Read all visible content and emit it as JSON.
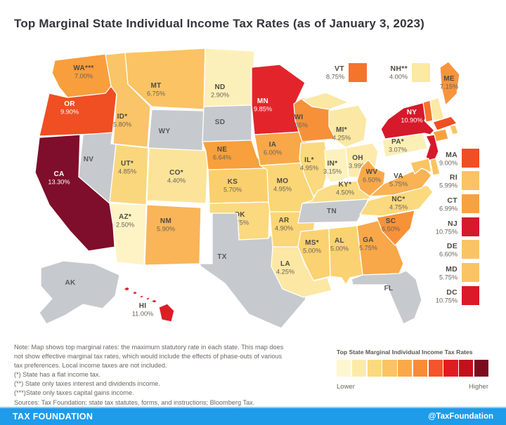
{
  "title": "Top Marginal State Individual Income Tax Rates (as of January 3, 2023)",
  "map": {
    "no_tax_color": "#C6CACE",
    "states": [
      {
        "id": "WA",
        "label": "WA***",
        "rate": "7.00%",
        "color": "#F89E3D",
        "text": "dark"
      },
      {
        "id": "OR",
        "label": "OR",
        "rate": "9.90%",
        "color": "#F04E23",
        "text": "white"
      },
      {
        "id": "CA",
        "label": "CA",
        "rate": "13.30%",
        "color": "#7E0E2B",
        "text": "white"
      },
      {
        "id": "NV",
        "label": "NV",
        "rate": "",
        "color": "#C6CACE",
        "text": "gray"
      },
      {
        "id": "ID",
        "label": "ID*",
        "rate": "5.80%",
        "color": "#FAC468",
        "text": "dark"
      },
      {
        "id": "MT",
        "label": "MT",
        "rate": "6.75%",
        "color": "#FBC364",
        "text": "dark"
      },
      {
        "id": "WY",
        "label": "WY",
        "rate": "",
        "color": "#C6CACE",
        "text": "gray"
      },
      {
        "id": "UT",
        "label": "UT*",
        "rate": "4.85%",
        "color": "#FAD77D",
        "text": "dark"
      },
      {
        "id": "CO",
        "label": "CO*",
        "rate": "4.40%",
        "color": "#FBE499",
        "text": "dark"
      },
      {
        "id": "AZ",
        "label": "AZ*",
        "rate": "2.50%",
        "color": "#FDF3C5",
        "text": "dark"
      },
      {
        "id": "NM",
        "label": "NM",
        "rate": "5.90%",
        "color": "#F9B558",
        "text": "dark"
      },
      {
        "id": "ND",
        "label": "ND",
        "rate": "2.90%",
        "color": "#FCF0BA",
        "text": "dark"
      },
      {
        "id": "SD",
        "label": "SD",
        "rate": "",
        "color": "#C6CACE",
        "text": "gray"
      },
      {
        "id": "NE",
        "label": "NE",
        "rate": "6.64%",
        "color": "#F7A03C",
        "text": "dark"
      },
      {
        "id": "KS",
        "label": "KS",
        "rate": "5.70%",
        "color": "#FAD06E",
        "text": "dark"
      },
      {
        "id": "OK",
        "label": "OK",
        "rate": "4.75%",
        "color": "#FBD97E",
        "text": "dark"
      },
      {
        "id": "TX",
        "label": "TX",
        "rate": "",
        "color": "#C6CACE",
        "text": "gray"
      },
      {
        "id": "MN",
        "label": "MN",
        "rate": "9.85%",
        "color": "#E3252B",
        "text": "white"
      },
      {
        "id": "IA",
        "label": "IA",
        "rate": "6.00%",
        "color": "#F8A848",
        "text": "dark"
      },
      {
        "id": "MO",
        "label": "MO",
        "rate": "4.95%",
        "color": "#FBD676",
        "text": "dark"
      },
      {
        "id": "AR",
        "label": "AR",
        "rate": "4.90%",
        "color": "#FBD676",
        "text": "dark"
      },
      {
        "id": "LA",
        "label": "LA",
        "rate": "4.25%",
        "color": "#FCE8A4",
        "text": "dark"
      },
      {
        "id": "WI",
        "label": "WI",
        "rate": "7.65%",
        "color": "#F6913A",
        "text": "dark"
      },
      {
        "id": "IL",
        "label": "IL*",
        "rate": "4.95%",
        "color": "#FBD97E",
        "text": "dark"
      },
      {
        "id": "MI",
        "label": "MI*",
        "rate": "4.25%",
        "color": "#FAE8A4",
        "text": "dark"
      },
      {
        "id": "IN",
        "label": "IN*",
        "rate": "3.15%",
        "color": "#FDF1BE",
        "text": "dark"
      },
      {
        "id": "OH",
        "label": "OH",
        "rate": "3.99%",
        "color": "#FCEBAC",
        "text": "dark"
      },
      {
        "id": "KY",
        "label": "KY*",
        "rate": "4.50%",
        "color": "#FBDC86",
        "text": "dark"
      },
      {
        "id": "TN",
        "label": "TN",
        "rate": "",
        "color": "#C6CACE",
        "text": "gray"
      },
      {
        "id": "MS",
        "label": "MS*",
        "rate": "5.00%",
        "color": "#FBD272",
        "text": "dark"
      },
      {
        "id": "AL",
        "label": "AL",
        "rate": "5.00%",
        "color": "#FBD272",
        "text": "dark"
      },
      {
        "id": "GA",
        "label": "GA",
        "rate": "5.75%",
        "color": "#F8A848",
        "text": "dark"
      },
      {
        "id": "FL",
        "label": "FL",
        "rate": "",
        "color": "#C6CACE",
        "text": "gray"
      },
      {
        "id": "SC",
        "label": "SC",
        "rate": "6.50%",
        "color": "#F79239",
        "text": "dark"
      },
      {
        "id": "NC",
        "label": "NC*",
        "rate": "4.75%",
        "color": "#FBD97E",
        "text": "dark"
      },
      {
        "id": "VA",
        "label": "VA",
        "rate": "5.75%",
        "color": "#F9B254",
        "text": "dark"
      },
      {
        "id": "WV",
        "label": "WV",
        "rate": "6.50%",
        "color": "#F9A94A",
        "text": "dark"
      },
      {
        "id": "PA",
        "label": "PA*",
        "rate": "3.07%",
        "color": "#FCEFB6",
        "text": "dark"
      },
      {
        "id": "NY",
        "label": "NY",
        "rate": "10.90%",
        "color": "#D6192B",
        "text": "white"
      },
      {
        "id": "ME",
        "label": "ME",
        "rate": "7.15%",
        "color": "#F7953D",
        "text": "dark"
      },
      {
        "id": "AK",
        "label": "AK",
        "rate": "",
        "color": "#C6CACE",
        "text": "gray"
      },
      {
        "id": "HI",
        "label": "HI",
        "rate": "11.00%",
        "color": "#DC1E27",
        "text": "dark"
      }
    ],
    "callouts": [
      {
        "id": "VT",
        "label": "VT",
        "rate": "8.75%",
        "color": "#F4742C"
      },
      {
        "id": "NH",
        "label": "NH**",
        "rate": "4.00%",
        "color": "#FCE9A6"
      }
    ],
    "east_list": [
      {
        "id": "MA",
        "label": "MA",
        "rate": "9.00%",
        "color": "#F04E23"
      },
      {
        "id": "RI",
        "label": "RI",
        "rate": "5.99%",
        "color": "#FAC464"
      },
      {
        "id": "CT",
        "label": "CT",
        "rate": "6.99%",
        "color": "#F8A23F"
      },
      {
        "id": "NJ",
        "label": "NJ",
        "rate": "10.75%",
        "color": "#D6192B"
      },
      {
        "id": "DE",
        "label": "DE",
        "rate": "6.60%",
        "color": "#FAC464"
      },
      {
        "id": "MD",
        "label": "MD",
        "rate": "5.75%",
        "color": "#FAC464"
      },
      {
        "id": "DC",
        "label": "DC",
        "rate": "10.75%",
        "color": "#DA1A26"
      }
    ]
  },
  "chart_data": {
    "type": "heatmap",
    "title": "Top Marginal State Individual Income Tax Rates (as of January 3, 2023)",
    "unit": "percent",
    "series": [
      {
        "state": "AL",
        "rate": 5.0
      },
      {
        "state": "AK",
        "rate": null
      },
      {
        "state": "AZ",
        "rate": 2.5,
        "note": "flat"
      },
      {
        "state": "AR",
        "rate": 4.9
      },
      {
        "state": "CA",
        "rate": 13.3
      },
      {
        "state": "CO",
        "rate": 4.4,
        "note": "flat"
      },
      {
        "state": "CT",
        "rate": 6.99
      },
      {
        "state": "DE",
        "rate": 6.6
      },
      {
        "state": "DC",
        "rate": 10.75
      },
      {
        "state": "FL",
        "rate": null
      },
      {
        "state": "GA",
        "rate": 5.75
      },
      {
        "state": "HI",
        "rate": 11.0
      },
      {
        "state": "ID",
        "rate": 5.8,
        "note": "flat"
      },
      {
        "state": "IL",
        "rate": 4.95,
        "note": "flat"
      },
      {
        "state": "IN",
        "rate": 3.15,
        "note": "flat"
      },
      {
        "state": "IA",
        "rate": 6.0
      },
      {
        "state": "KS",
        "rate": 5.7
      },
      {
        "state": "KY",
        "rate": 4.5,
        "note": "flat"
      },
      {
        "state": "LA",
        "rate": 4.25
      },
      {
        "state": "ME",
        "rate": 7.15
      },
      {
        "state": "MD",
        "rate": 5.75
      },
      {
        "state": "MA",
        "rate": 9.0
      },
      {
        "state": "MI",
        "rate": 4.25,
        "note": "flat"
      },
      {
        "state": "MN",
        "rate": 9.85
      },
      {
        "state": "MS",
        "rate": 5.0,
        "note": "flat"
      },
      {
        "state": "MO",
        "rate": 4.95
      },
      {
        "state": "MT",
        "rate": 6.75
      },
      {
        "state": "NE",
        "rate": 6.64
      },
      {
        "state": "NV",
        "rate": null
      },
      {
        "state": "NH",
        "rate": 4.0,
        "note": "interest and dividends only"
      },
      {
        "state": "NJ",
        "rate": 10.75
      },
      {
        "state": "NM",
        "rate": 5.9
      },
      {
        "state": "NY",
        "rate": 10.9
      },
      {
        "state": "NC",
        "rate": 4.75,
        "note": "flat"
      },
      {
        "state": "ND",
        "rate": 2.9
      },
      {
        "state": "OH",
        "rate": 3.99
      },
      {
        "state": "OK",
        "rate": 4.75
      },
      {
        "state": "OR",
        "rate": 9.9
      },
      {
        "state": "PA",
        "rate": 3.07,
        "note": "flat"
      },
      {
        "state": "RI",
        "rate": 5.99
      },
      {
        "state": "SC",
        "rate": 6.5
      },
      {
        "state": "SD",
        "rate": null
      },
      {
        "state": "TN",
        "rate": null
      },
      {
        "state": "TX",
        "rate": null
      },
      {
        "state": "UT",
        "rate": 4.85,
        "note": "flat"
      },
      {
        "state": "VT",
        "rate": 8.75
      },
      {
        "state": "VA",
        "rate": 5.75
      },
      {
        "state": "WA",
        "rate": 7.0,
        "note": "capital gains only"
      },
      {
        "state": "WV",
        "rate": 6.5
      },
      {
        "state": "WI",
        "rate": 7.65
      },
      {
        "state": "WY",
        "rate": null
      }
    ]
  },
  "notes": [
    "Note: Map shows top marginal rates: the maximum statutory rate in each state. This map does",
    "not show effective marginal tax rates, which would include the effects of phase-outs of various",
    "tax preferences. Local income taxes are not included.",
    "(*) State has a flat income tax.",
    "(**) State only taxes interest and dividends income.",
    "(***)State only taxes capital gains income.",
    "Sources: Tax Foundation; state tax statutes, forms, and instructions; Bloomberg Tax."
  ],
  "legend": {
    "title": "Top State Marginal Individual Income Tax Rates",
    "lower_label": "Lower",
    "higher_label": "Higher",
    "colors": [
      "#FEF6CE",
      "#FCEBA8",
      "#FBD97E",
      "#FAC464",
      "#F9A94A",
      "#F78B38",
      "#F4552A",
      "#E01B22",
      "#C4101E",
      "#7A0C20"
    ]
  },
  "footer": {
    "brand": "TAX FOUNDATION",
    "handle": "@TaxFoundation"
  }
}
